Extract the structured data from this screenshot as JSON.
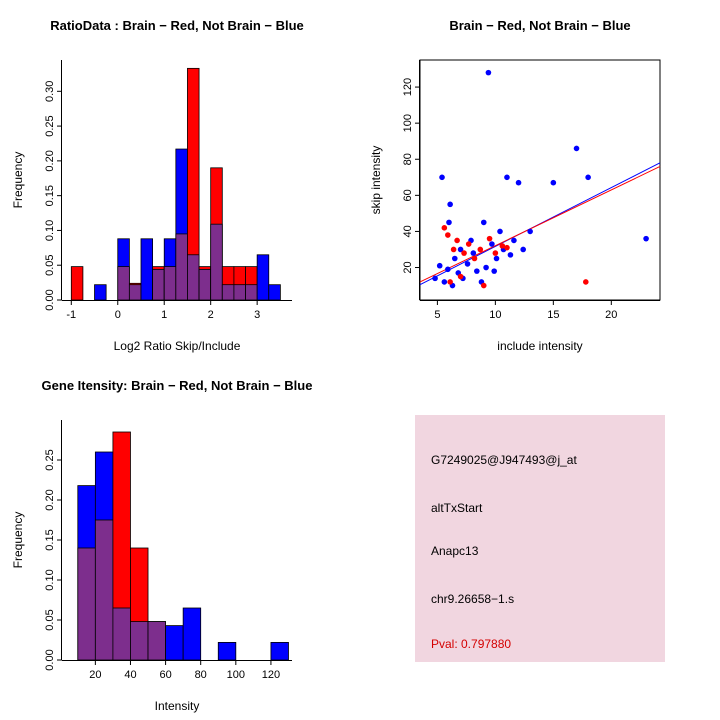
{
  "figure": {
    "bg_color": "#ffffff"
  },
  "info_box": {
    "bg_color": "#f1d6e0",
    "lines": [
      {
        "id": "probe-id",
        "text": "G7249025@J947493@j_at",
        "color": "#000000"
      },
      {
        "id": "splice-event-type",
        "text": "altTxStart",
        "color": "#000000"
      },
      {
        "id": "gene-symbol",
        "text": "Anapc13",
        "color": "#000000"
      },
      {
        "id": "genome-location",
        "text": "chr9.26658−1.s",
        "color": "#000000"
      },
      {
        "id": "p-value",
        "text": "Pval: 0.797880",
        "color": "#d40000"
      }
    ]
  },
  "chart_data": [
    {
      "id": "ratio-histogram",
      "type": "bar",
      "subtype": "overlaid_histogram",
      "title": "RatioData : Brain − Red, Not Brain − Blue",
      "xlabel": "Log2 Ratio Skip/Include",
      "ylabel": "Frequency",
      "xlim": [
        -1.2,
        3.75
      ],
      "ylim": [
        0,
        0.345
      ],
      "grid": false,
      "xticks": [
        {
          "v": -1,
          "label": "-1"
        },
        {
          "v": 0,
          "label": "0"
        },
        {
          "v": 1,
          "label": "1"
        },
        {
          "v": 2,
          "label": "2"
        },
        {
          "v": 3,
          "label": "3"
        }
      ],
      "yticks": [
        {
          "v": 0,
          "label": "0.00"
        },
        {
          "v": 0.05,
          "label": "0.05"
        },
        {
          "v": 0.1,
          "label": "0.10"
        },
        {
          "v": 0.15,
          "label": "0.15"
        },
        {
          "v": 0.2,
          "label": "0.20"
        },
        {
          "v": 0.25,
          "label": "0.25"
        },
        {
          "v": 0.3,
          "label": "0.30"
        }
      ],
      "bin_width": 0.25,
      "colors": {
        "brain": "#ff0000",
        "not_brain": "#0000ff",
        "overlap": "#7d2e8d"
      },
      "legend_note": "Brain = red, Not Brain = blue, overlap shown purple",
      "bins": [
        {
          "x": -1.0,
          "brain": 0.048,
          "not_brain": 0
        },
        {
          "x": -0.5,
          "brain": 0,
          "not_brain": 0.022
        },
        {
          "x": 0.0,
          "brain": 0.048,
          "not_brain": 0.088
        },
        {
          "x": 0.25,
          "brain": 0.024,
          "not_brain": 0.022
        },
        {
          "x": 0.5,
          "brain": 0,
          "not_brain": 0.088
        },
        {
          "x": 0.75,
          "brain": 0.048,
          "not_brain": 0.044
        },
        {
          "x": 1.0,
          "brain": 0.048,
          "not_brain": 0.088
        },
        {
          "x": 1.25,
          "brain": 0.095,
          "not_brain": 0.217
        },
        {
          "x": 1.5,
          "brain": 0.333,
          "not_brain": 0.065
        },
        {
          "x": 1.75,
          "brain": 0.048,
          "not_brain": 0.044
        },
        {
          "x": 2.0,
          "brain": 0.19,
          "not_brain": 0.109
        },
        {
          "x": 2.25,
          "brain": 0.048,
          "not_brain": 0.022
        },
        {
          "x": 2.5,
          "brain": 0.048,
          "not_brain": 0.022
        },
        {
          "x": 2.75,
          "brain": 0.048,
          "not_brain": 0.022
        },
        {
          "x": 3.0,
          "brain": 0,
          "not_brain": 0.065
        },
        {
          "x": 3.25,
          "brain": 0,
          "not_brain": 0.022
        }
      ]
    },
    {
      "id": "skip-include-scatter",
      "type": "scatter",
      "title": "Brain − Red, Not Brain − Blue",
      "xlabel": "include intensity",
      "ylabel": "skip intensity",
      "xlim": [
        3.5,
        24.2
      ],
      "ylim": [
        2,
        135
      ],
      "grid": false,
      "box": true,
      "xticks": [
        {
          "v": 5,
          "label": "5"
        },
        {
          "v": 10,
          "label": "10"
        },
        {
          "v": 15,
          "label": "15"
        },
        {
          "v": 20,
          "label": "20"
        }
      ],
      "yticks": [
        {
          "v": 20,
          "label": "20"
        },
        {
          "v": 40,
          "label": "40"
        },
        {
          "v": 60,
          "label": "60"
        },
        {
          "v": 80,
          "label": "80"
        },
        {
          "v": 100,
          "label": "100"
        },
        {
          "v": 120,
          "label": "120"
        }
      ],
      "series": [
        {
          "name": "Not Brain",
          "color": "#0000ff",
          "points": [
            [
              4.8,
              14
            ],
            [
              5.2,
              21
            ],
            [
              5.4,
              70
            ],
            [
              5.6,
              12
            ],
            [
              5.9,
              19
            ],
            [
              6.0,
              45
            ],
            [
              6.1,
              55
            ],
            [
              6.3,
              10
            ],
            [
              6.5,
              25
            ],
            [
              6.8,
              17
            ],
            [
              7.0,
              30
            ],
            [
              7.2,
              14
            ],
            [
              7.6,
              22
            ],
            [
              7.9,
              35
            ],
            [
              8.1,
              28
            ],
            [
              8.4,
              18
            ],
            [
              8.8,
              12
            ],
            [
              9.0,
              45
            ],
            [
              9.2,
              20
            ],
            [
              9.4,
              128
            ],
            [
              9.7,
              33
            ],
            [
              9.9,
              18
            ],
            [
              10.1,
              25
            ],
            [
              10.4,
              40
            ],
            [
              10.7,
              30
            ],
            [
              11.0,
              70
            ],
            [
              11.3,
              27
            ],
            [
              11.6,
              35
            ],
            [
              12.0,
              67
            ],
            [
              12.4,
              30
            ],
            [
              13.0,
              40
            ],
            [
              15.0,
              67
            ],
            [
              17.0,
              86
            ],
            [
              18.0,
              70
            ],
            [
              23.0,
              36
            ]
          ]
        },
        {
          "name": "Brain",
          "color": "#ff0000",
          "points": [
            [
              5.6,
              42
            ],
            [
              5.9,
              38
            ],
            [
              6.1,
              12
            ],
            [
              6.4,
              30
            ],
            [
              6.7,
              35
            ],
            [
              7.0,
              15
            ],
            [
              7.3,
              28
            ],
            [
              7.7,
              33
            ],
            [
              8.2,
              25
            ],
            [
              8.7,
              30
            ],
            [
              9.0,
              10
            ],
            [
              9.5,
              36
            ],
            [
              10.0,
              28
            ],
            [
              10.6,
              32
            ],
            [
              11.0,
              31
            ],
            [
              17.8,
              12
            ]
          ]
        }
      ],
      "fit_lines": [
        {
          "name": "not-brain-fit",
          "color": "#0000ff",
          "x": [
            3.5,
            24.2
          ],
          "y": [
            10.5,
            78
          ]
        },
        {
          "name": "brain-fit",
          "color": "#ff0000",
          "x": [
            3.5,
            24.2
          ],
          "y": [
            12,
            76
          ]
        }
      ]
    },
    {
      "id": "gene-intensity-histogram",
      "type": "bar",
      "subtype": "overlaid_histogram",
      "title": "Gene Itensity: Brain − Red, Not Brain − Blue",
      "xlabel": "Intensity",
      "ylabel": "Frequency",
      "xlim": [
        1,
        132
      ],
      "ylim": [
        0,
        0.3
      ],
      "grid": false,
      "xticks": [
        {
          "v": 20,
          "label": "20"
        },
        {
          "v": 40,
          "label": "40"
        },
        {
          "v": 60,
          "label": "60"
        },
        {
          "v": 80,
          "label": "80"
        },
        {
          "v": 100,
          "label": "100"
        },
        {
          "v": 120,
          "label": "120"
        }
      ],
      "yticks": [
        {
          "v": 0,
          "label": "0.00"
        },
        {
          "v": 0.05,
          "label": "0.05"
        },
        {
          "v": 0.1,
          "label": "0.10"
        },
        {
          "v": 0.15,
          "label": "0.15"
        },
        {
          "v": 0.2,
          "label": "0.20"
        },
        {
          "v": 0.25,
          "label": "0.25"
        }
      ],
      "bin_width": 10,
      "colors": {
        "brain": "#ff0000",
        "not_brain": "#0000ff",
        "overlap": "#7d2e8d"
      },
      "legend_note": "Brain = red, Not Brain = blue, overlap shown purple",
      "bins": [
        {
          "x": 10,
          "brain": 0.14,
          "not_brain": 0.218
        },
        {
          "x": 20,
          "brain": 0.175,
          "not_brain": 0.26
        },
        {
          "x": 30,
          "brain": 0.285,
          "not_brain": 0.065
        },
        {
          "x": 40,
          "brain": 0.14,
          "not_brain": 0.048
        },
        {
          "x": 50,
          "brain": 0.048,
          "not_brain": 0.048
        },
        {
          "x": 60,
          "brain": 0,
          "not_brain": 0.043
        },
        {
          "x": 70,
          "brain": 0,
          "not_brain": 0.065
        },
        {
          "x": 90,
          "brain": 0,
          "not_brain": 0.022
        },
        {
          "x": 120,
          "brain": 0,
          "not_brain": 0.022
        }
      ]
    }
  ]
}
